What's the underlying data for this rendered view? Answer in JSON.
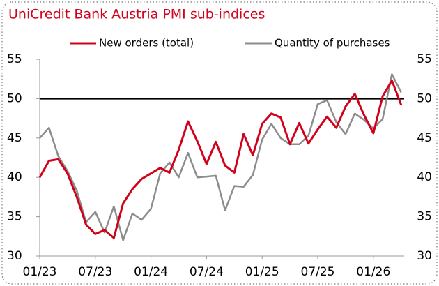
{
  "chart_data": {
    "type": "line",
    "title": "UniCredit Bank Austria  PMI  sub-indices",
    "categories": [
      "01/23",
      null,
      null,
      null,
      null,
      null,
      "07/23",
      null,
      null,
      null,
      null,
      null,
      "01/24",
      null,
      null,
      null,
      null,
      null,
      "07/24",
      null,
      null,
      null,
      null,
      null,
      "01/25",
      null,
      null,
      null,
      null,
      null,
      "07/25",
      null,
      null,
      null,
      null,
      null,
      "01/26",
      null,
      null,
      null
    ],
    "series": [
      {
        "name": "New orders (total)",
        "color": "#d0021b",
        "values": [
          40.0,
          42.1,
          42.3,
          40.5,
          37.5,
          34.0,
          32.8,
          33.3,
          32.3,
          36.7,
          38.5,
          39.8,
          40.5,
          41.2,
          40.6,
          43.5,
          47.1,
          44.6,
          41.7,
          44.5,
          41.5,
          40.6,
          45.5,
          42.8,
          46.8,
          48.1,
          47.6,
          44.2,
          46.9,
          44.3,
          46.1,
          47.7,
          46.3,
          49.0,
          50.6,
          47.9,
          45.6,
          50.3,
          52.3,
          49.2
        ]
      },
      {
        "name": "Quantity of purchases",
        "color": "#8c8c8c",
        "values": [
          45.0,
          46.3,
          42.7,
          40.8,
          38.3,
          34.3,
          35.6,
          33.0,
          36.3,
          32.0,
          35.4,
          34.6,
          36.0,
          40.5,
          41.9,
          40.0,
          43.1,
          40.0,
          40.1,
          40.2,
          35.8,
          38.9,
          38.8,
          40.3,
          44.8,
          46.8,
          45.0,
          44.2,
          44.2,
          45.3,
          49.3,
          49.8,
          47.0,
          45.5,
          48.1,
          47.3,
          46.2,
          47.4,
          53.1,
          50.8
        ]
      }
    ],
    "ylim": [
      30,
      55
    ],
    "yticks": [
      30,
      35,
      40,
      45,
      50,
      55
    ],
    "y2lim": [
      30,
      55
    ],
    "y2ticks": [
      30,
      35,
      40,
      45,
      50,
      55
    ],
    "reference_line": 50,
    "legend": "top"
  }
}
